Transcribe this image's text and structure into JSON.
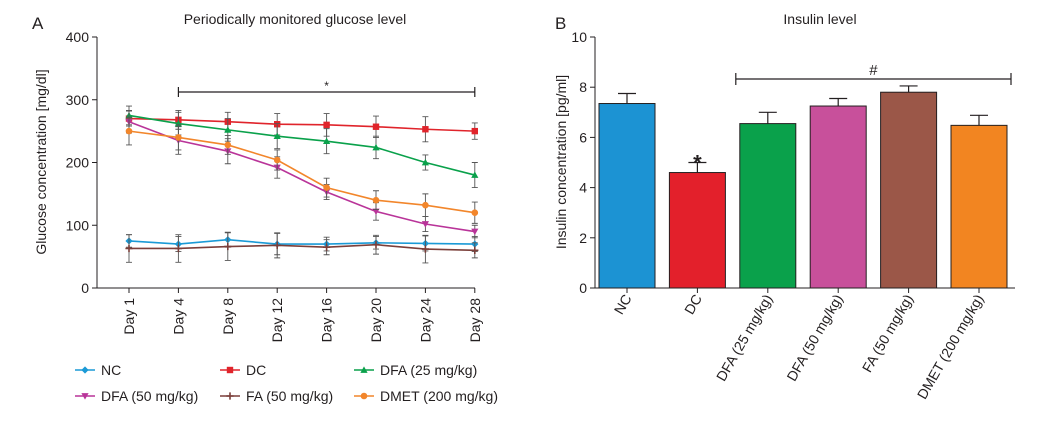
{
  "panels": {
    "a": {
      "letter": "A"
    },
    "b": {
      "letter": "B"
    }
  },
  "chart_data": [
    {
      "type": "line",
      "title": "Periodically monitored glucose level",
      "xlabel": "",
      "ylabel": "Glucose concentration [mg/dl]",
      "ylim": [
        0,
        400
      ],
      "yticks": [
        "0",
        "100",
        "200",
        "300",
        "400"
      ],
      "categories": [
        "Day 1",
        "Day 4",
        "Day 8",
        "Day 12",
        "Day 16",
        "Day 20",
        "Day 24",
        "Day 28"
      ],
      "grid": false,
      "legend_position": "bottom",
      "significance": {
        "symbol": "*",
        "from": "Day 4",
        "to": "Day 28"
      },
      "series": [
        {
          "name": "NC",
          "color": "#1b9ad6",
          "marker": "diamond",
          "values": [
            75,
            70,
            77,
            70,
            70,
            72,
            71,
            70
          ],
          "errors": [
            10,
            12,
            12,
            17,
            11,
            10,
            12,
            12
          ]
        },
        {
          "name": "DC",
          "color": "#e0242b",
          "marker": "square",
          "values": [
            270,
            268,
            265,
            261,
            260,
            257,
            253,
            250
          ],
          "errors": [
            12,
            15,
            15,
            17,
            18,
            17,
            20,
            13
          ]
        },
        {
          "name": "DFA (25 mg/kg)",
          "color": "#0aa14b",
          "marker": "triangle",
          "values": [
            275,
            262,
            252,
            242,
            234,
            224,
            200,
            180
          ],
          "errors": [
            15,
            18,
            18,
            20,
            20,
            18,
            12,
            20
          ]
        },
        {
          "name": "DFA (50 mg/kg)",
          "color": "#b93499",
          "marker": "triangle-down",
          "values": [
            265,
            235,
            218,
            192,
            153,
            122,
            102,
            90
          ],
          "errors": [
            18,
            22,
            20,
            17,
            12,
            14,
            12,
            10
          ]
        },
        {
          "name": "FA (50 mg/kg)",
          "color": "#7b3f3a",
          "marker": "plus",
          "values": [
            63,
            63,
            66,
            68,
            65,
            69,
            62,
            60
          ],
          "errors": [
            22,
            22,
            22,
            20,
            12,
            15,
            22,
            12
          ]
        },
        {
          "name": "DMET (200 mg/kg)",
          "color": "#f2862b",
          "marker": "circle",
          "values": [
            250,
            240,
            228,
            204,
            160,
            140,
            132,
            120
          ],
          "errors": [
            22,
            20,
            15,
            16,
            15,
            15,
            18,
            17
          ]
        }
      ]
    },
    {
      "type": "bar",
      "title": "Insulin level",
      "xlabel": "",
      "ylabel": "Insulin concentration [pg/ml]",
      "ylim": [
        0,
        10
      ],
      "yticks": [
        "0",
        "2",
        "4",
        "6",
        "8",
        "10"
      ],
      "grid": false,
      "categories": [
        "NC",
        "DC",
        "DFA (25 mg/kg)",
        "DFA (50 mg/kg)",
        "FA (50 mg/kg)",
        "DMET (200 mg/kg)"
      ],
      "values": [
        7.35,
        4.6,
        6.55,
        7.25,
        7.8,
        6.48
      ],
      "errors": [
        0.4,
        0.4,
        0.45,
        0.3,
        0.25,
        0.4
      ],
      "colors": [
        "#1c93d3",
        "#e3202b",
        "#0aa14b",
        "#c8509b",
        "#9b5748",
        "#f28521"
      ],
      "bar_annotations": [
        {
          "category": "DC",
          "symbol": "*"
        }
      ],
      "significance": {
        "symbol": "#",
        "from": "DFA (25 mg/kg)",
        "to": "DMET (200 mg/kg)"
      }
    }
  ]
}
